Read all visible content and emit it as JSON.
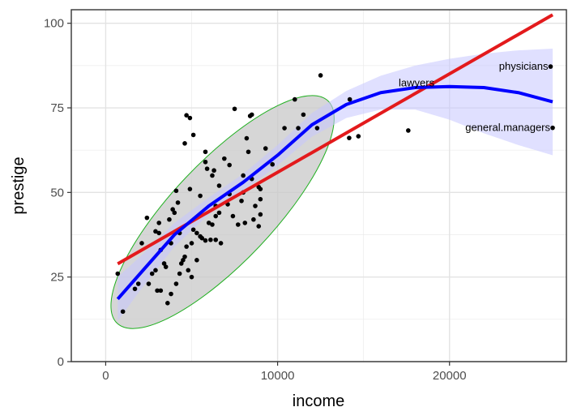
{
  "chart_data": {
    "type": "scatter",
    "title": "",
    "xlabel": "income",
    "ylabel": "prestige",
    "xlim": [
      -2000,
      26800
    ],
    "ylim": [
      0,
      104
    ],
    "x_ticks": [
      0,
      10000,
      20000
    ],
    "y_ticks": [
      0,
      25,
      50,
      75,
      100
    ],
    "x_tick_labels": [
      "0",
      "10000",
      "20000"
    ],
    "y_tick_labels": [
      "0",
      "25",
      "50",
      "75",
      "100"
    ],
    "grid": true,
    "legend": "none",
    "points": [
      {
        "x": 25879,
        "y": 87.2
      },
      {
        "x": 26000,
        "y": 69.1
      },
      {
        "x": 14163,
        "y": 66.1
      },
      {
        "x": 14200,
        "y": 77.5
      },
      {
        "x": 14700,
        "y": 66.6
      },
      {
        "x": 17600,
        "y": 68.3
      },
      {
        "x": 12500,
        "y": 84.6
      },
      {
        "x": 11500,
        "y": 73.0
      },
      {
        "x": 11000,
        "y": 77.5
      },
      {
        "x": 11200,
        "y": 69.0
      },
      {
        "x": 12300,
        "y": 69.0
      },
      {
        "x": 10400,
        "y": 69.0
      },
      {
        "x": 9700,
        "y": 58.3
      },
      {
        "x": 9300,
        "y": 63.0
      },
      {
        "x": 8500,
        "y": 73.0
      },
      {
        "x": 8400,
        "y": 72.6
      },
      {
        "x": 7500,
        "y": 74.7
      },
      {
        "x": 8200,
        "y": 66.0
      },
      {
        "x": 8300,
        "y": 62.0
      },
      {
        "x": 8000,
        "y": 55.0
      },
      {
        "x": 8500,
        "y": 54.0
      },
      {
        "x": 8900,
        "y": 51.6
      },
      {
        "x": 9000,
        "y": 51.0
      },
      {
        "x": 9000,
        "y": 48.0
      },
      {
        "x": 8700,
        "y": 46.0
      },
      {
        "x": 9000,
        "y": 43.5
      },
      {
        "x": 8900,
        "y": 40.0
      },
      {
        "x": 8600,
        "y": 42.0
      },
      {
        "x": 8100,
        "y": 41.0
      },
      {
        "x": 7700,
        "y": 40.5
      },
      {
        "x": 7400,
        "y": 43.0
      },
      {
        "x": 7900,
        "y": 47.5
      },
      {
        "x": 7100,
        "y": 46.5
      },
      {
        "x": 7200,
        "y": 58.1
      },
      {
        "x": 6900,
        "y": 60.0
      },
      {
        "x": 6600,
        "y": 44.0
      },
      {
        "x": 6400,
        "y": 43.0
      },
      {
        "x": 6200,
        "y": 40.5
      },
      {
        "x": 6000,
        "y": 41.0
      },
      {
        "x": 5900,
        "y": 57.0
      },
      {
        "x": 6300,
        "y": 56.5
      },
      {
        "x": 6200,
        "y": 55.0
      },
      {
        "x": 5800,
        "y": 59.0
      },
      {
        "x": 6400,
        "y": 46.0
      },
      {
        "x": 6700,
        "y": 35.0
      },
      {
        "x": 6400,
        "y": 36.0
      },
      {
        "x": 6100,
        "y": 36.0
      },
      {
        "x": 5800,
        "y": 35.8
      },
      {
        "x": 5600,
        "y": 36.5
      },
      {
        "x": 5500,
        "y": 37.0
      },
      {
        "x": 5300,
        "y": 38.0
      },
      {
        "x": 5100,
        "y": 39.0
      },
      {
        "x": 5000,
        "y": 35.0
      },
      {
        "x": 4900,
        "y": 51.0
      },
      {
        "x": 5000,
        "y": 25.0
      },
      {
        "x": 4800,
        "y": 27.0
      },
      {
        "x": 4700,
        "y": 72.8
      },
      {
        "x": 4900,
        "y": 72.0
      },
      {
        "x": 4600,
        "y": 64.5
      },
      {
        "x": 5100,
        "y": 67.0
      },
      {
        "x": 5500,
        "y": 49.0
      },
      {
        "x": 5800,
        "y": 62.0
      },
      {
        "x": 4500,
        "y": 30.0
      },
      {
        "x": 4400,
        "y": 29.0
      },
      {
        "x": 4600,
        "y": 31.0
      },
      {
        "x": 4700,
        "y": 34.0
      },
      {
        "x": 4300,
        "y": 38.0
      },
      {
        "x": 4100,
        "y": 50.5
      },
      {
        "x": 4200,
        "y": 47.0
      },
      {
        "x": 4000,
        "y": 44.0
      },
      {
        "x": 4300,
        "y": 26.0
      },
      {
        "x": 4100,
        "y": 23.0
      },
      {
        "x": 3800,
        "y": 20.0
      },
      {
        "x": 3600,
        "y": 17.3
      },
      {
        "x": 3800,
        "y": 35.0
      },
      {
        "x": 3700,
        "y": 42.0
      },
      {
        "x": 3900,
        "y": 45.0
      },
      {
        "x": 3500,
        "y": 28.0
      },
      {
        "x": 3400,
        "y": 29.0
      },
      {
        "x": 3200,
        "y": 33.0
      },
      {
        "x": 3100,
        "y": 38.0
      },
      {
        "x": 2900,
        "y": 38.5
      },
      {
        "x": 3100,
        "y": 41.0
      },
      {
        "x": 2900,
        "y": 27.0
      },
      {
        "x": 2700,
        "y": 26.0
      },
      {
        "x": 2500,
        "y": 23.0
      },
      {
        "x": 2400,
        "y": 42.5
      },
      {
        "x": 2100,
        "y": 35.0
      },
      {
        "x": 1900,
        "y": 23.0
      },
      {
        "x": 1700,
        "y": 21.5
      },
      {
        "x": 1000,
        "y": 14.8
      },
      {
        "x": 700,
        "y": 26.0
      },
      {
        "x": 3000,
        "y": 21.0
      },
      {
        "x": 5300,
        "y": 30.0
      },
      {
        "x": 6600,
        "y": 52.0
      },
      {
        "x": 7200,
        "y": 49.5
      },
      {
        "x": 8000,
        "y": 50.0
      },
      {
        "x": 3200,
        "y": 21.0
      }
    ],
    "point_labels": [
      {
        "x": 25879,
        "y": 87.2,
        "text": "physicians"
      },
      {
        "x": 19263,
        "y": 82.3,
        "text": "lawyers"
      },
      {
        "x": 26000,
        "y": 69.1,
        "text": "general.managers"
      }
    ],
    "linear_fit": {
      "color": "#e31a1c",
      "x": [
        700,
        26000
      ],
      "y": [
        28.9,
        102.5
      ]
    },
    "smooth_fit": {
      "color": "#0000ff",
      "band_color": "#c6c6ff",
      "x": [
        700,
        2000,
        4000,
        6000,
        8000,
        10000,
        12000,
        14000,
        16000,
        18000,
        20000,
        22000,
        24000,
        26000
      ],
      "y": [
        18.5,
        26.0,
        37.5,
        46.0,
        53.0,
        61.0,
        70.0,
        76.0,
        79.5,
        81.0,
        81.3,
        81.0,
        79.5,
        76.8
      ],
      "lower": [
        12.0,
        21.0,
        34.0,
        43.5,
        50.5,
        58.0,
        66.5,
        72.0,
        74.5,
        74.5,
        71.5,
        67.5,
        64.0,
        61.0
      ],
      "upper": [
        25.0,
        31.0,
        41.0,
        48.5,
        55.5,
        64.0,
        73.5,
        80.0,
        84.5,
        87.5,
        89.5,
        91.0,
        92.0,
        92.5
      ]
    },
    "ellipse": {
      "stroke": "#22b022",
      "fill": "#c8c8c8",
      "cx_data": 6798,
      "cy_data": 44.2,
      "semi_major_data": 45.3,
      "semi_minor_data": 14.9,
      "angle_deg": 46.5
    }
  }
}
